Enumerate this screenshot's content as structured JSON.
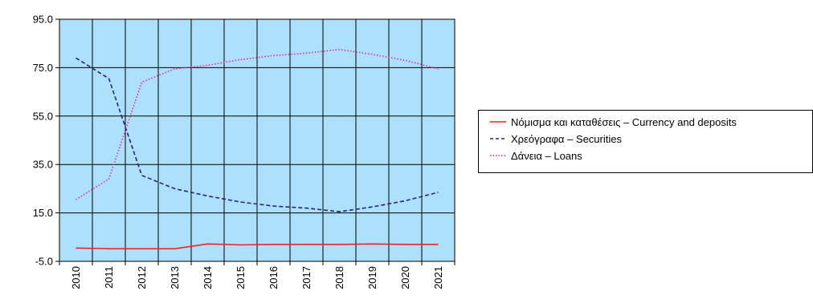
{
  "chart_data": {
    "type": "line",
    "title": "",
    "xlabel": "",
    "ylabel": "",
    "ylim": [
      -5,
      95
    ],
    "y_ticks": [
      "95.0",
      "75.0",
      "55.0",
      "35.0",
      "15.0",
      "-5.0"
    ],
    "y_tick_values": [
      95,
      75,
      55,
      35,
      15,
      -5
    ],
    "categories": [
      "2010",
      "2011",
      "2012",
      "2013",
      "2014",
      "2015",
      "2016",
      "2017",
      "2018",
      "2019",
      "2020",
      "2021"
    ],
    "grid": true,
    "plot_background": "#ade0fb",
    "legend_position": "right",
    "series": [
      {
        "name": "Νόμισμα και καταθέσεις – Currency and deposits",
        "color": "#e8232a",
        "style": "solid",
        "values": [
          0.5,
          0.2,
          0.2,
          0.2,
          2.2,
          1.8,
          2.0,
          2.0,
          2.0,
          2.2,
          2.0,
          2.0
        ]
      },
      {
        "name": "Χρεόγραφα – Securities",
        "color": "#27257c",
        "style": "dashed",
        "values": [
          79.0,
          70.5,
          30.5,
          25.0,
          22.0,
          19.5,
          17.8,
          17.0,
          15.5,
          17.5,
          20.0,
          23.5
        ]
      },
      {
        "name": "Δάνεια – Loans",
        "color": "#e62ab0",
        "style": "dotted",
        "values": [
          20.5,
          29.0,
          69.0,
          74.5,
          76.0,
          78.3,
          80.0,
          81.0,
          82.5,
          80.5,
          78.0,
          74.5
        ]
      }
    ]
  }
}
